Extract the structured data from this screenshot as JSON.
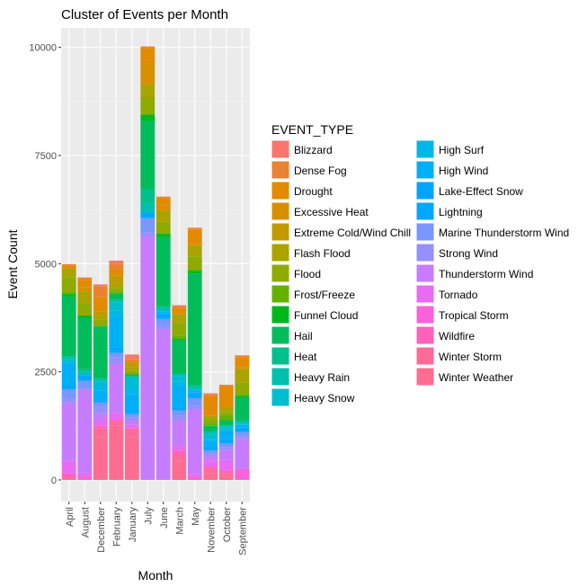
{
  "chart_data": {
    "type": "bar",
    "stacked": true,
    "title": "Cluster of Events per Month",
    "xlabel": "Month",
    "ylabel": "Event Count",
    "ylim": [
      -500,
      10450
    ],
    "yticks": [
      0,
      2500,
      5000,
      7500,
      10000
    ],
    "grid": true,
    "legend_title": "EVENT_TYPE",
    "legend_position": "right",
    "categories": [
      "April",
      "August",
      "December",
      "February",
      "January",
      "July",
      "June",
      "March",
      "May",
      "November",
      "October",
      "September"
    ],
    "series": [
      {
        "name": "Blizzard",
        "color": "#F8766D",
        "values": [
          0,
          0,
          40,
          70,
          110,
          0,
          0,
          20,
          0,
          25,
          0,
          0
        ]
      },
      {
        "name": "Dense Fog",
        "color": "#EA8331",
        "values": [
          40,
          50,
          250,
          140,
          50,
          40,
          30,
          40,
          50,
          40,
          50,
          40
        ]
      },
      {
        "name": "Drought",
        "color": "#E28A00",
        "values": [
          60,
          180,
          330,
          130,
          30,
          360,
          150,
          130,
          320,
          460,
          480,
          230
        ]
      },
      {
        "name": "Excessive Heat",
        "color": "#D89000",
        "values": [
          0,
          100,
          0,
          0,
          0,
          470,
          150,
          0,
          40,
          0,
          0,
          50
        ]
      },
      {
        "name": "Extreme Cold/Wind Chill",
        "color": "#C09B00",
        "values": [
          0,
          0,
          100,
          190,
          100,
          0,
          0,
          40,
          0,
          0,
          0,
          0
        ]
      },
      {
        "name": "Flash Flood",
        "color": "#ABA300",
        "values": [
          200,
          260,
          100,
          100,
          90,
          300,
          250,
          180,
          250,
          70,
          110,
          310
        ]
      },
      {
        "name": "Flood",
        "color": "#8FAA00",
        "values": [
          330,
          290,
          150,
          100,
          80,
          400,
          280,
          300,
          300,
          90,
          60,
          260
        ]
      },
      {
        "name": "Frost/Freeze",
        "color": "#64B200",
        "values": [
          70,
          0,
          0,
          40,
          0,
          0,
          0,
          70,
          40,
          70,
          120,
          50
        ]
      },
      {
        "name": "Funnel Cloud",
        "color": "#00B81B",
        "values": [
          50,
          60,
          0,
          0,
          0,
          150,
          70,
          30,
          60,
          0,
          0,
          30
        ]
      },
      {
        "name": "Hail",
        "color": "#00BD5C",
        "values": [
          1390,
          1180,
          1210,
          140,
          50,
          1580,
          1590,
          780,
          2570,
          130,
          120,
          530
        ]
      },
      {
        "name": "Heat",
        "color": "#00C08B",
        "values": [
          0,
          50,
          0,
          0,
          0,
          340,
          60,
          0,
          30,
          0,
          0,
          30
        ]
      },
      {
        "name": "Heavy Rain",
        "color": "#00C0AF",
        "values": [
          60,
          70,
          60,
          50,
          0,
          180,
          70,
          50,
          70,
          70,
          40,
          60
        ]
      },
      {
        "name": "Heavy Snow",
        "color": "#00BDD0",
        "values": [
          80,
          0,
          120,
          200,
          230,
          0,
          0,
          130,
          0,
          100,
          40,
          0
        ]
      },
      {
        "name": "High Surf",
        "color": "#00B8E7",
        "values": [
          30,
          30,
          100,
          150,
          170,
          0,
          0,
          80,
          40,
          40,
          50,
          20
        ]
      },
      {
        "name": "High Wind",
        "color": "#00B0F6",
        "values": [
          490,
          0,
          200,
          700,
          370,
          30,
          50,
          500,
          30,
          130,
          180,
          60
        ]
      },
      {
        "name": "Lake-Effect Snow",
        "color": "#00A5FF",
        "values": [
          30,
          0,
          30,
          50,
          50,
          0,
          0,
          0,
          0,
          0,
          0,
          0
        ]
      },
      {
        "name": "Lightning",
        "color": "#00A9FF",
        "values": [
          70,
          120,
          40,
          70,
          50,
          120,
          130,
          80,
          140,
          100,
          100,
          100
        ]
      },
      {
        "name": "Marine Thunderstorm Wind",
        "color": "#7997FF",
        "values": [
          210,
          170,
          90,
          110,
          70,
          330,
          160,
          130,
          170,
          70,
          90,
          100
        ]
      },
      {
        "name": "Strong Wind",
        "color": "#9590FF",
        "values": [
          110,
          40,
          160,
          140,
          80,
          90,
          70,
          100,
          80,
          60,
          60,
          50
        ]
      },
      {
        "name": "Thunderstorm Wind",
        "color": "#C77CFF",
        "values": [
          1320,
          1930,
          170,
          1140,
          100,
          5630,
          3490,
          600,
          1510,
          100,
          240,
          710
        ]
      },
      {
        "name": "Tornado",
        "color": "#E76BF3",
        "values": [
          300,
          50,
          110,
          160,
          80,
          0,
          0,
          100,
          80,
          140,
          240,
          0
        ]
      },
      {
        "name": "Tropical Storm",
        "color": "#FA62DB",
        "values": [
          0,
          80,
          0,
          0,
          0,
          0,
          0,
          0,
          0,
          0,
          0,
          250
        ]
      },
      {
        "name": "Wildfire",
        "color": "#FF62BC",
        "values": [
          90,
          20,
          60,
          30,
          0,
          0,
          0,
          110,
          50,
          50,
          60,
          0
        ]
      },
      {
        "name": "Winter Storm",
        "color": "#FF6A98",
        "values": [
          60,
          0,
          200,
          100,
          190,
          0,
          0,
          120,
          0,
          110,
          60,
          0
        ]
      },
      {
        "name": "Winter Weather",
        "color": "#FF6C91",
        "values": [
          0,
          0,
          1000,
          1260,
          1000,
          0,
          0,
          450,
          0,
          150,
          100,
          0
        ]
      }
    ]
  }
}
